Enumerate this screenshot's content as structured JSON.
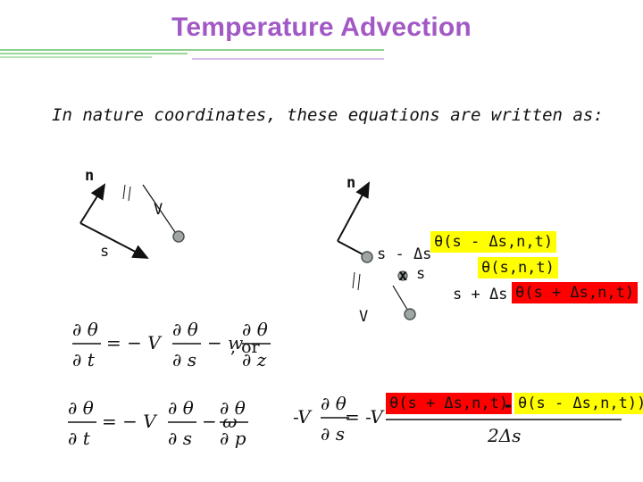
{
  "slide": {
    "title": "Temperature Advection",
    "intro": "In nature coordinates, these equations are written as:"
  },
  "left_diagram": {
    "n_label": "n",
    "v_label": "V",
    "s_label": "s",
    "parallel_mark": "//"
  },
  "right_diagram": {
    "n_label": "n",
    "s_minus_label": "s - Δs",
    "s_label": "s",
    "s_plus_label": "s + Δs",
    "v_label": "V",
    "theta_minus": "θ(s - Δs,n,t)",
    "theta_center": "θ(s,n,t)",
    "theta_plus": "θ(s + Δs,n,t)",
    "x_mark": "x",
    "colors": {
      "yellow": "#ffff00",
      "red": "#ff0000"
    }
  },
  "equations": {
    "eq1_tail": ", or",
    "eq_minus_V": "-V",
    "eq_equals_minus_V": "= -V",
    "eq_numerator_left": "θ(s + Δs,n,t)",
    "eq_numerator_minus": "-",
    "eq_numerator_right": "θ(s - Δs,n,t))",
    "eq_denominator": "2Δs"
  },
  "colors": {
    "title": "#a259c6",
    "rule_green": "#7cc57c",
    "rule_purple": "#b88ad6"
  }
}
